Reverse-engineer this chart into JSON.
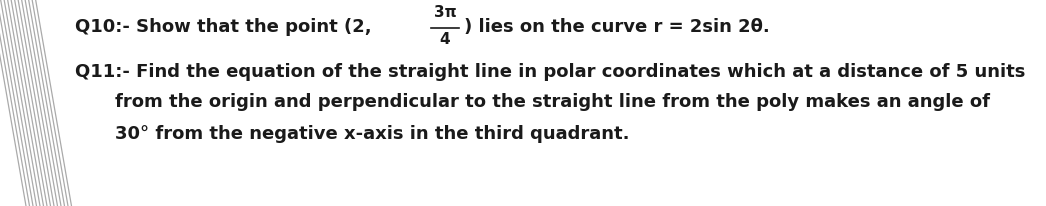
{
  "background_color": "#ffffff",
  "slash_color": "#aaaaaa",
  "text_color": "#1a1a1a",
  "q10_text1": "Q10:- Show that the point (2,",
  "q10_frac_num": "3π",
  "q10_frac_den": "4",
  "q10_text2": ") lies on the curve r = 2sin 2θ.",
  "q11_line1": "Q11:- Find the equation of the straight line in polar coordinates which at a distance of 5 units",
  "q11_line2": "from the origin and perpendicular to the straight line from the poly makes an angle of",
  "q11_line3": "30° from the negative x-axis in the third quadrant.",
  "font_size": 13,
  "fig_width": 10.46,
  "fig_height": 2.07,
  "dpi": 100
}
